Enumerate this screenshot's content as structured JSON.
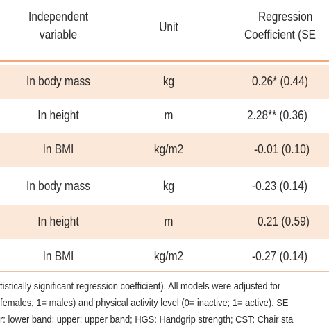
{
  "header": {
    "independent_line1": "Independent",
    "independent_line2": "variable",
    "unit": "Unit",
    "regression_line1": "Regression",
    "regression_line2": "Coefficient (SE"
  },
  "rows": [
    {
      "variable": "In body mass",
      "unit": "kg",
      "coefficient": "0.26* (0.44)"
    },
    {
      "variable": "In height",
      "unit": "m",
      "coefficient": "2.28** (0.36)"
    },
    {
      "variable": "In BMI",
      "unit": "kg/m2",
      "coefficient": "-0.01 (0.10)"
    },
    {
      "variable": "In body mass",
      "unit": "kg",
      "coefficient": "-0.23 (0.14)"
    },
    {
      "variable": "In height",
      "unit": "m",
      "coefficient": "0.21 (0.59)"
    },
    {
      "variable": "In BMI",
      "unit": "kg/m2",
      "coefficient": "-0.27 (0.14)"
    }
  ],
  "footnote": {
    "line1": "tistically significant regression coefficient). All models were adjusted for",
    "line2": " females, 1= males) and physical activity level (0= inactive; 1= active). SE",
    "line3": "r: lower band; upper: upper band; HGS: Handgrip strength; CST: Chair sta"
  },
  "colors": {
    "header_rule": "#f0a878",
    "shaded_row": "#fce8d9",
    "text": "#2b2b2b"
  }
}
